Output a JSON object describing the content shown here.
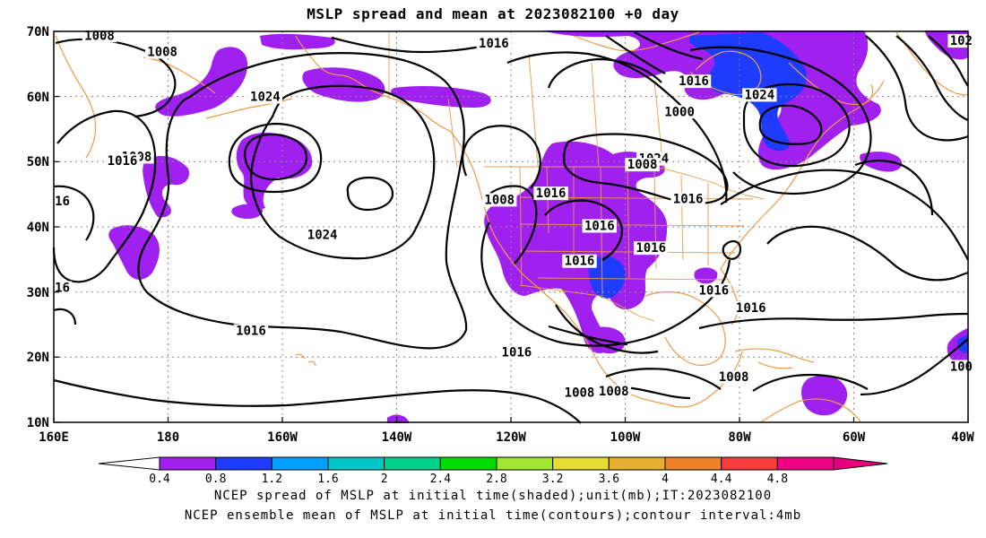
{
  "title": "MSLP spread and mean at 2023082100 +0 day",
  "map": {
    "lat_ticks": [
      "70N",
      "60N",
      "50N",
      "40N",
      "30N",
      "20N",
      "10N"
    ],
    "lon_ticks": [
      "160E",
      "180",
      "160W",
      "140W",
      "120W",
      "100W",
      "80W",
      "60W",
      "40W"
    ],
    "lat_range": [
      10,
      70
    ],
    "lon_range_east": [
      160,
      320
    ],
    "gridlines": "dotted",
    "colors": {
      "contour": "#000000",
      "coastline": "#ee9944",
      "gridline": "#888888"
    }
  },
  "contour_labels": [
    {
      "text": "1008",
      "lon": 168,
      "lat": 69
    },
    {
      "text": "1008",
      "lon": 179,
      "lat": 66.5
    },
    {
      "text": "1016",
      "lon": 237,
      "lat": 67.8
    },
    {
      "text": "1016",
      "lon": 272,
      "lat": 62
    },
    {
      "text": "1024",
      "lon": 197,
      "lat": 59.6
    },
    {
      "text": "1008",
      "lon": 174.5,
      "lat": 50.4
    },
    {
      "text": "1016",
      "lon": 172,
      "lat": 49.8
    },
    {
      "text": "1024",
      "lon": 265,
      "lat": 50.1
    },
    {
      "text": "1016",
      "lon": 247,
      "lat": 44.8
    },
    {
      "text": "1008",
      "lon": 238,
      "lat": 43.8
    },
    {
      "text": "1000",
      "lon": 269.5,
      "lat": 57.3
    },
    {
      "text": "1008",
      "lon": 263,
      "lat": 49.2
    },
    {
      "text": "1024",
      "lon": 283.5,
      "lat": 59.9
    },
    {
      "text": "1016",
      "lon": 271,
      "lat": 43.9
    },
    {
      "text": "1016",
      "lon": 255.5,
      "lat": 39.8
    },
    {
      "text": "1024",
      "lon": 207,
      "lat": 38.4
    },
    {
      "text": "1016",
      "lon": 264.5,
      "lat": 36.4
    },
    {
      "text": "1016",
      "lon": 252,
      "lat": 34.4
    },
    {
      "text": "1016",
      "lon": 275.5,
      "lat": 29.9
    },
    {
      "text": "1016",
      "lon": 282,
      "lat": 27.2
    },
    {
      "text": "1016",
      "lon": 194.5,
      "lat": 23.7
    },
    {
      "text": "1016",
      "lon": 241,
      "lat": 20.4
    },
    {
      "text": "1008",
      "lon": 258,
      "lat": 14.4
    },
    {
      "text": "1008",
      "lon": 252,
      "lat": 14.2
    },
    {
      "text": "1008",
      "lon": 279,
      "lat": 16.6
    },
    {
      "text": "102",
      "lon": 318.8,
      "lat": 68.2
    },
    {
      "text": "16",
      "lon": 161.5,
      "lat": 43.6
    },
    {
      "text": "16",
      "lon": 161.5,
      "lat": 30.3
    },
    {
      "text": "100",
      "lon": 318.8,
      "lat": 18.2
    }
  ],
  "colorbar": {
    "ticks": [
      "0.4",
      "0.8",
      "1.2",
      "1.6",
      "2",
      "2.4",
      "2.8",
      "3.2",
      "3.6",
      "4",
      "4.4",
      "4.8"
    ],
    "colors": [
      "#a020f0",
      "#1e3cff",
      "#00a0ff",
      "#00c8c8",
      "#00d28c",
      "#00dc00",
      "#a0e632",
      "#e6dc32",
      "#e6af2d",
      "#f08228",
      "#fa3c3c",
      "#f00082"
    ]
  },
  "captions": [
    "NCEP spread of MSLP at initial time(shaded);unit(mb);IT:2023082100",
    "NCEP ensemble mean of MSLP at initial time(contours);contour interval:4mb"
  ]
}
